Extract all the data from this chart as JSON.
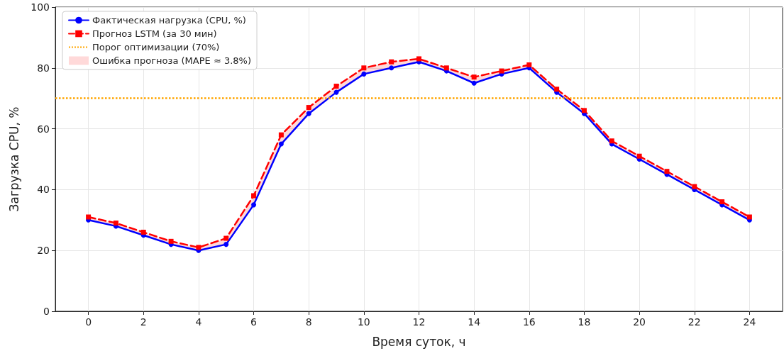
{
  "chart_data": {
    "type": "line",
    "xlabel": "Время суток, ч",
    "ylabel": "Загрузка CPU, %",
    "x": [
      0,
      1,
      2,
      3,
      4,
      5,
      6,
      7,
      8,
      9,
      10,
      11,
      12,
      13,
      14,
      15,
      16,
      17,
      18,
      19,
      20,
      21,
      22,
      23,
      24
    ],
    "series": [
      {
        "name": "Фактическая нагрузка (CPU, %)",
        "color": "#0000ff",
        "marker": "circle",
        "line_style": "solid",
        "values": [
          30,
          28,
          25,
          22,
          20,
          22,
          35,
          55,
          65,
          72,
          78,
          80,
          82,
          79,
          75,
          78,
          80,
          72,
          65,
          55,
          50,
          45,
          40,
          35,
          30
        ]
      },
      {
        "name": "Прогноз LSTM (за 30 мин)",
        "color": "#ff0000",
        "marker": "square",
        "line_style": "dashed",
        "values": [
          31,
          29,
          26,
          23,
          21,
          24,
          38,
          58,
          67,
          74,
          80,
          82,
          83,
          80,
          77,
          79,
          81,
          73,
          66,
          56,
          51,
          46,
          41,
          36,
          31
        ],
        "lower": [
          30,
          28,
          25,
          22,
          20,
          22,
          35,
          55,
          65,
          72,
          78,
          80,
          82,
          79,
          75,
          78,
          80,
          72,
          65,
          55,
          50,
          45,
          40,
          35,
          30
        ],
        "upper": [
          31,
          29,
          26,
          23,
          21,
          24,
          38,
          58,
          67,
          74,
          80,
          82,
          83,
          80,
          77,
          79,
          81,
          73,
          66,
          56,
          51,
          46,
          41,
          36,
          31
        ]
      }
    ],
    "annotations": [
      "Ошибка прогноза (MAPE ≈ 3.8%)"
    ],
    "ref_lines": [
      {
        "axis": "y",
        "value": 70,
        "label": "Порог оптимизации (70%)",
        "color": "#ffa500",
        "line_style": "dotted"
      }
    ],
    "xlim": [
      -1.2,
      25.2
    ],
    "xticks": [
      0,
      2,
      4,
      6,
      8,
      10,
      12,
      14,
      16,
      18,
      20,
      22,
      24
    ],
    "ylim": [
      0,
      100
    ],
    "yticks": [
      0,
      20,
      40,
      60,
      80,
      100
    ],
    "grid": true,
    "legend": "top left"
  }
}
